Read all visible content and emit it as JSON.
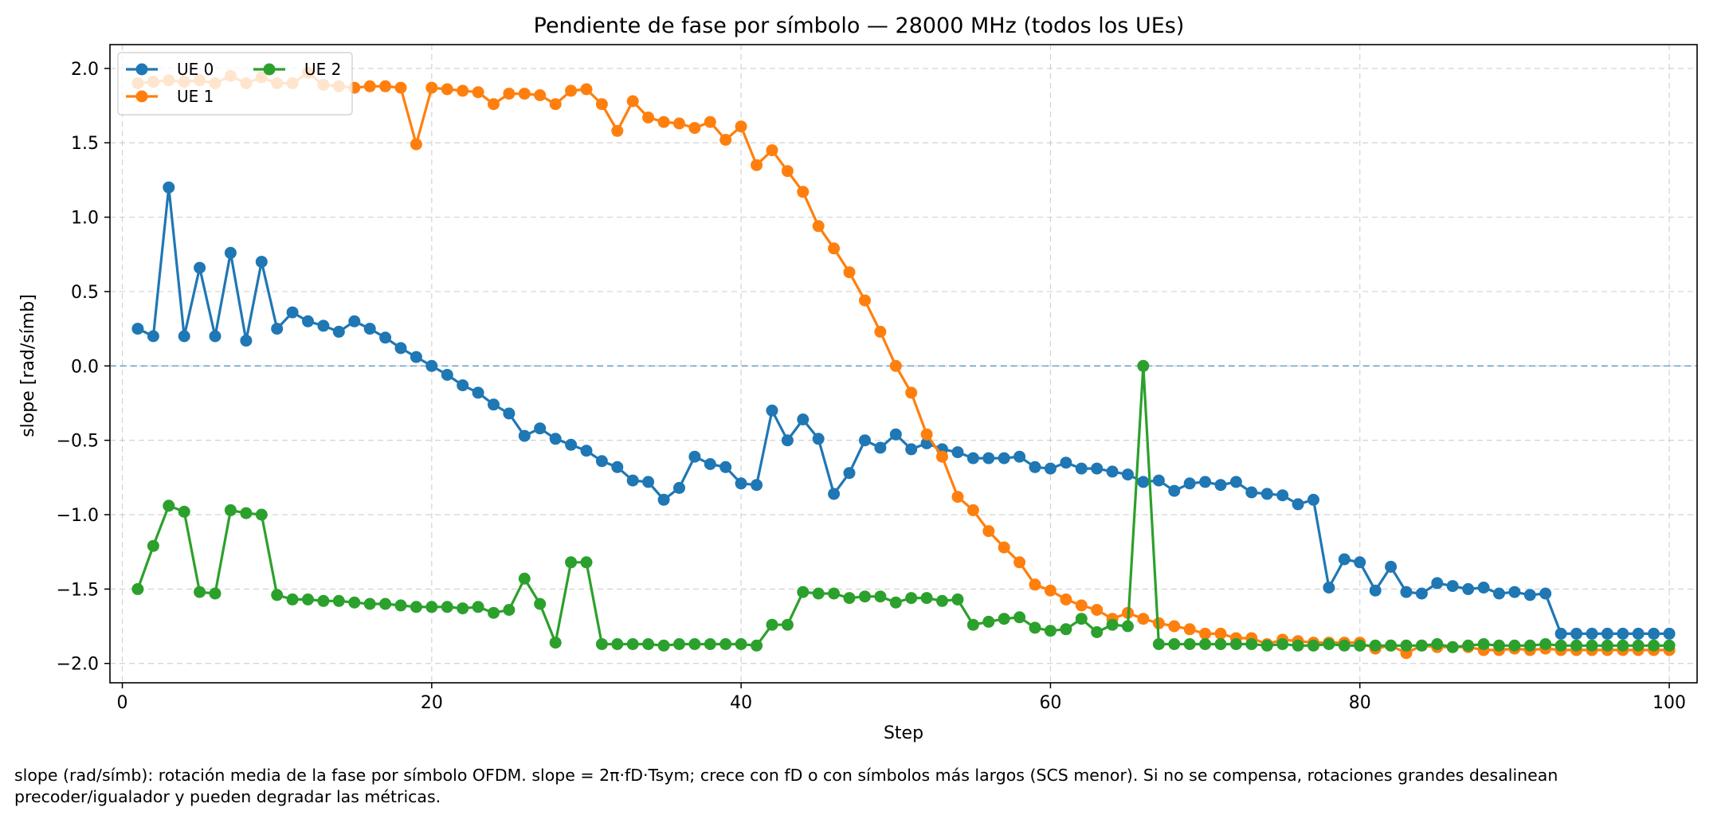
{
  "chart_data": {
    "type": "line",
    "title": "Pendiente de fase por símbolo — 28000 MHz (todos los UEs)",
    "xlabel": "Step",
    "ylabel": "slope [rad/símb]",
    "xlim": [
      -0.8,
      101.8
    ],
    "ylim": [
      -2.13,
      2.16
    ],
    "xticks": [
      0,
      20,
      40,
      60,
      80,
      100
    ],
    "yticks": [
      2.0,
      1.5,
      1.0,
      0.5,
      0.0,
      -0.5,
      -1.0,
      -1.5,
      -2.0
    ],
    "xtick_labels": [
      "0",
      "20",
      "40",
      "60",
      "80",
      "100"
    ],
    "ytick_labels": [
      "2.0",
      "1.5",
      "1.0",
      "0.5",
      "0.0",
      "−0.5",
      "−1.0",
      "−1.5",
      "−2.0"
    ],
    "grid": true,
    "legend_position": "top-left",
    "reference_line": {
      "y": 0,
      "style": "dashed",
      "color": "#1f77b4"
    },
    "x": [
      1,
      2,
      3,
      4,
      5,
      6,
      7,
      8,
      9,
      10,
      11,
      12,
      13,
      14,
      15,
      16,
      17,
      18,
      19,
      20,
      21,
      22,
      23,
      24,
      25,
      26,
      27,
      28,
      29,
      30,
      31,
      32,
      33,
      34,
      35,
      36,
      37,
      38,
      39,
      40,
      41,
      42,
      43,
      44,
      45,
      46,
      47,
      48,
      49,
      50,
      51,
      52,
      53,
      54,
      55,
      56,
      57,
      58,
      59,
      60,
      61,
      62,
      63,
      64,
      65,
      66,
      67,
      68,
      69,
      70,
      71,
      72,
      73,
      74,
      75,
      76,
      77,
      78,
      79,
      80,
      81,
      82,
      83,
      84,
      85,
      86,
      87,
      88,
      89,
      90,
      91,
      92,
      93,
      94,
      95,
      96,
      97,
      98,
      99,
      100
    ],
    "series": [
      {
        "name": "UE 0",
        "color": "#1f77b4",
        "values": [
          0.25,
          0.2,
          1.2,
          0.2,
          0.66,
          0.2,
          0.76,
          0.17,
          0.7,
          0.25,
          0.36,
          0.3,
          0.27,
          0.23,
          0.3,
          0.25,
          0.19,
          0.12,
          0.06,
          0.0,
          -0.06,
          -0.13,
          -0.18,
          -0.26,
          -0.32,
          -0.47,
          -0.42,
          -0.49,
          -0.53,
          -0.57,
          -0.64,
          -0.68,
          -0.77,
          -0.78,
          -0.9,
          -0.82,
          -0.61,
          -0.66,
          -0.68,
          -0.79,
          -0.8,
          -0.3,
          -0.5,
          -0.36,
          -0.49,
          -0.86,
          -0.72,
          -0.5,
          -0.55,
          -0.46,
          -0.56,
          -0.52,
          -0.56,
          -0.58,
          -0.62,
          -0.62,
          -0.62,
          -0.61,
          -0.68,
          -0.69,
          -0.65,
          -0.69,
          -0.69,
          -0.71,
          -0.73,
          -0.78,
          -0.77,
          -0.84,
          -0.79,
          -0.78,
          -0.8,
          -0.78,
          -0.85,
          -0.86,
          -0.87,
          -0.93,
          -0.9,
          -1.49,
          -1.3,
          -1.32,
          -1.51,
          -1.35,
          -1.52,
          -1.53,
          -1.46,
          -1.48,
          -1.5,
          -1.49,
          -1.53,
          -1.52,
          -1.54,
          -1.53,
          -1.8,
          -1.8,
          -1.8,
          -1.8,
          -1.8,
          -1.8,
          -1.8,
          -1.8
        ]
      },
      {
        "name": "UE 1",
        "color": "#ff7f0e",
        "values": [
          1.9,
          1.91,
          1.92,
          1.91,
          1.92,
          1.9,
          1.95,
          1.9,
          1.94,
          1.9,
          1.9,
          1.97,
          1.89,
          1.88,
          1.87,
          1.88,
          1.88,
          1.87,
          1.49,
          1.87,
          1.86,
          1.85,
          1.84,
          1.76,
          1.83,
          1.83,
          1.82,
          1.76,
          1.85,
          1.86,
          1.76,
          1.58,
          1.78,
          1.67,
          1.64,
          1.63,
          1.6,
          1.64,
          1.52,
          1.61,
          1.35,
          1.45,
          1.31,
          1.17,
          0.94,
          0.79,
          0.63,
          0.44,
          0.23,
          0.0,
          -0.18,
          -0.46,
          -0.61,
          -0.88,
          -0.97,
          -1.11,
          -1.22,
          -1.32,
          -1.47,
          -1.51,
          -1.57,
          -1.61,
          -1.64,
          -1.7,
          -1.66,
          -1.7,
          -1.73,
          -1.75,
          -1.77,
          -1.8,
          -1.8,
          -1.83,
          -1.83,
          -1.87,
          -1.84,
          -1.85,
          -1.86,
          -1.86,
          -1.86,
          -1.86,
          -1.9,
          -1.88,
          -1.93,
          -1.88,
          -1.89,
          -1.89,
          -1.89,
          -1.91,
          -1.91,
          -1.9,
          -1.91,
          -1.9,
          -1.91,
          -1.91,
          -1.91,
          -1.91,
          -1.91,
          -1.91,
          -1.91,
          -1.91
        ]
      },
      {
        "name": "UE 2",
        "color": "#2ca02c",
        "values": [
          -1.5,
          -1.21,
          -0.94,
          -0.98,
          -1.52,
          -1.53,
          -0.97,
          -0.99,
          -1.0,
          -1.54,
          -1.57,
          -1.57,
          -1.58,
          -1.58,
          -1.59,
          -1.6,
          -1.6,
          -1.61,
          -1.62,
          -1.62,
          -1.62,
          -1.63,
          -1.62,
          -1.66,
          -1.64,
          -1.43,
          -1.6,
          -1.86,
          -1.32,
          -1.32,
          -1.87,
          -1.87,
          -1.87,
          -1.87,
          -1.88,
          -1.87,
          -1.87,
          -1.87,
          -1.87,
          -1.87,
          -1.88,
          -1.74,
          -1.74,
          -1.52,
          -1.53,
          -1.53,
          -1.56,
          -1.55,
          -1.55,
          -1.59,
          -1.56,
          -1.56,
          -1.58,
          -1.57,
          -1.74,
          -1.72,
          -1.7,
          -1.69,
          -1.76,
          -1.78,
          -1.77,
          -1.7,
          -1.79,
          -1.74,
          -1.75,
          0.0,
          -1.87,
          -1.87,
          -1.87,
          -1.87,
          -1.87,
          -1.87,
          -1.87,
          -1.88,
          -1.87,
          -1.88,
          -1.88,
          -1.87,
          -1.88,
          -1.88,
          -1.88,
          -1.88,
          -1.88,
          -1.88,
          -1.87,
          -1.89,
          -1.88,
          -1.87,
          -1.88,
          -1.88,
          -1.88,
          -1.87,
          -1.88,
          -1.88,
          -1.88,
          -1.88,
          -1.88,
          -1.88,
          -1.88,
          -1.88
        ]
      }
    ]
  },
  "caption": {
    "line1": "slope (rad/símb): rotación media de la fase por símbolo OFDM. slope = 2π·fD·Tsym; crece con fD o con símbolos más largos (SCS menor). Si no se compensa, rotaciones grandes desalinean",
    "line2": "precoder/igualador y pueden degradar las métricas."
  }
}
